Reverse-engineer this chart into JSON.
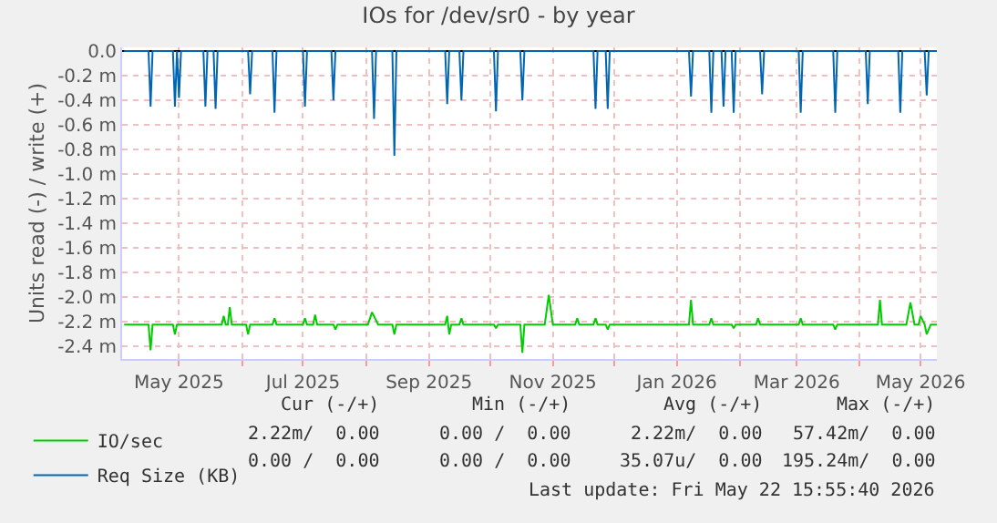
{
  "chart_data": {
    "type": "line",
    "title": "IOs for /dev/sr0 - by year",
    "ylabel": "Units read (-) / write (+)",
    "xlim": [
      "2025-04-17",
      "2026-05-23"
    ],
    "xticks": [
      {
        "value": "2025-05-15",
        "label": "May 2025"
      },
      {
        "value": "2025-06-15",
        "label": null
      },
      {
        "value": "2025-07-15",
        "label": "Jul 2025"
      },
      {
        "value": "2025-08-15",
        "label": null
      },
      {
        "value": "2025-09-15",
        "label": "Sep 2025"
      },
      {
        "value": "2025-10-15",
        "label": null
      },
      {
        "value": "2025-11-15",
        "label": "Nov 2025"
      },
      {
        "value": "2025-12-15",
        "label": null
      },
      {
        "value": "2026-01-15",
        "label": "Jan 2026"
      },
      {
        "value": "2026-02-15",
        "label": null
      },
      {
        "value": "2026-03-15",
        "label": "Mar 2026"
      },
      {
        "value": "2026-04-15",
        "label": null
      },
      {
        "value": "2026-05-15",
        "label": "May 2026"
      }
    ],
    "ylim": [
      -2.5,
      0.03
    ],
    "yticks": [
      {
        "value": 0,
        "label": "0.0"
      },
      {
        "value": -0.2,
        "label": "-0.2 m"
      },
      {
        "value": -0.4,
        "label": "-0.4 m"
      },
      {
        "value": -0.6,
        "label": "-0.6 m"
      },
      {
        "value": -0.8,
        "label": "-0.8 m"
      },
      {
        "value": -1.0,
        "label": "-1.0 m"
      },
      {
        "value": -1.2,
        "label": "-1.2 m"
      },
      {
        "value": -1.4,
        "label": "-1.4 m"
      },
      {
        "value": -1.6,
        "label": "-1.6 m"
      },
      {
        "value": -1.8,
        "label": "-1.8 m"
      },
      {
        "value": -2.0,
        "label": "-2.0 m"
      },
      {
        "value": -2.2,
        "label": "-2.2 m"
      },
      {
        "value": -2.4,
        "label": "-2.4 m"
      }
    ],
    "grid": true,
    "legend": "bottom",
    "marker": "none",
    "line_style": "solid",
    "series": [
      {
        "name": "IO/sec",
        "color": "#00cc00",
        "x": [
          "2025-04-18",
          "2025-04-30",
          "2025-05-01",
          "2025-05-02",
          "2025-05-12",
          "2025-05-13",
          "2025-05-14",
          "2025-06-05",
          "2025-06-06",
          "2025-06-07",
          "2025-06-08",
          "2025-06-09",
          "2025-06-10",
          "2025-06-17",
          "2025-06-18",
          "2025-06-19",
          "2025-06-30",
          "2025-07-01",
          "2025-07-02",
          "2025-07-15",
          "2025-07-16",
          "2025-07-17",
          "2025-07-20",
          "2025-07-21",
          "2025-07-22",
          "2025-07-30",
          "2025-07-31",
          "2025-08-01",
          "2025-08-16",
          "2025-08-18",
          "2025-08-21",
          "2025-08-28",
          "2025-08-29",
          "2025-08-30",
          "2025-09-23",
          "2025-09-24",
          "2025-09-25",
          "2025-09-26",
          "2025-09-30",
          "2025-10-01",
          "2025-10-02",
          "2025-10-17",
          "2025-10-18",
          "2025-10-19",
          "2025-10-30",
          "2025-10-31",
          "2025-11-01",
          "2025-11-11",
          "2025-11-13",
          "2025-11-15",
          "2025-11-26",
          "2025-11-27",
          "2025-11-28",
          "2025-12-05",
          "2025-12-06",
          "2025-12-07",
          "2025-12-11",
          "2025-12-12",
          "2025-12-13",
          "2026-01-21",
          "2026-01-22",
          "2026-01-23",
          "2026-01-31",
          "2026-02-01",
          "2026-02-02",
          "2026-02-11",
          "2026-02-12",
          "2026-02-13",
          "2026-02-23",
          "2026-02-24",
          "2026-02-25",
          "2026-03-16",
          "2026-03-17",
          "2026-03-18",
          "2026-04-02",
          "2026-04-03",
          "2026-04-04",
          "2026-04-24",
          "2026-04-25",
          "2026-04-26",
          "2026-05-08",
          "2026-05-10",
          "2026-05-12",
          "2026-05-14",
          "2026-05-15",
          "2026-05-17",
          "2026-05-18",
          "2026-05-20",
          "2026-05-23"
        ],
        "values": [
          -2.22,
          -2.22,
          -2.43,
          -2.22,
          -2.22,
          -2.3,
          -2.22,
          -2.22,
          -2.15,
          -2.22,
          -2.22,
          -2.08,
          -2.22,
          -2.22,
          -2.3,
          -2.22,
          -2.22,
          -2.17,
          -2.22,
          -2.22,
          -2.17,
          -2.22,
          -2.22,
          -2.14,
          -2.22,
          -2.22,
          -2.26,
          -2.22,
          -2.22,
          -2.12,
          -2.22,
          -2.22,
          -2.3,
          -2.22,
          -2.22,
          -2.15,
          -2.3,
          -2.22,
          -2.22,
          -2.17,
          -2.22,
          -2.22,
          -2.25,
          -2.22,
          -2.22,
          -2.45,
          -2.22,
          -2.22,
          -1.98,
          -2.22,
          -2.22,
          -2.17,
          -2.22,
          -2.22,
          -2.17,
          -2.22,
          -2.22,
          -2.26,
          -2.22,
          -2.22,
          -2.02,
          -2.22,
          -2.22,
          -2.17,
          -2.22,
          -2.22,
          -2.25,
          -2.22,
          -2.22,
          -2.17,
          -2.22,
          -2.22,
          -2.17,
          -2.22,
          -2.22,
          -2.26,
          -2.22,
          -2.22,
          -2.02,
          -2.22,
          -2.22,
          -2.04,
          -2.22,
          -2.22,
          -2.15,
          -2.22,
          -2.3,
          -2.22,
          -2.22
        ]
      },
      {
        "name": "Req Size (KB)",
        "color": "#0066b3",
        "x": [
          "2025-04-18",
          "2025-04-30",
          "2025-05-01",
          "2025-05-02",
          "2025-05-12",
          "2025-05-13",
          "2025-05-14",
          "2025-05-15",
          "2025-05-16",
          "2025-05-27",
          "2025-05-28",
          "2025-05-29",
          "2025-06-01",
          "2025-06-02",
          "2025-06-03",
          "2025-06-18",
          "2025-06-19",
          "2025-06-20",
          "2025-06-30",
          "2025-07-01",
          "2025-07-02",
          "2025-07-15",
          "2025-07-16",
          "2025-07-17",
          "2025-07-29",
          "2025-07-30",
          "2025-07-31",
          "2025-08-18",
          "2025-08-19",
          "2025-08-20",
          "2025-08-28",
          "2025-08-29",
          "2025-08-30",
          "2025-09-23",
          "2025-09-24",
          "2025-09-25",
          "2025-09-30",
          "2025-10-01",
          "2025-10-02",
          "2025-10-17",
          "2025-10-18",
          "2025-10-19",
          "2025-10-30",
          "2025-10-31",
          "2025-11-01",
          "2025-12-05",
          "2025-12-06",
          "2025-12-07",
          "2025-12-11",
          "2025-12-12",
          "2025-12-13",
          "2026-01-21",
          "2026-01-22",
          "2026-01-23",
          "2026-01-31",
          "2026-02-01",
          "2026-02-02",
          "2026-02-06",
          "2026-02-07",
          "2026-02-08",
          "2026-02-11",
          "2026-02-12",
          "2026-02-13",
          "2026-02-25",
          "2026-02-26",
          "2026-02-27",
          "2026-03-16",
          "2026-03-17",
          "2026-03-18",
          "2026-04-02",
          "2026-04-03",
          "2026-04-04",
          "2026-04-18",
          "2026-04-19",
          "2026-04-20",
          "2026-05-04",
          "2026-05-05",
          "2026-05-06",
          "2026-05-17",
          "2026-05-18",
          "2026-05-19",
          "2026-05-23"
        ],
        "values": [
          0,
          0,
          -0.45,
          0,
          0,
          -0.45,
          0,
          -0.38,
          0,
          0,
          -0.45,
          0,
          0,
          -0.47,
          0,
          0,
          -0.35,
          0,
          0,
          -0.5,
          0,
          0,
          -0.45,
          0,
          0,
          -0.4,
          0,
          0,
          -0.55,
          0,
          0,
          -0.85,
          0,
          0,
          -0.43,
          0,
          0,
          -0.4,
          0,
          0,
          -0.49,
          0,
          0,
          -0.4,
          0,
          0,
          -0.47,
          0,
          0,
          -0.47,
          0,
          0,
          -0.37,
          0,
          0,
          -0.5,
          0,
          0,
          -0.45,
          0,
          0,
          -0.5,
          0,
          0,
          -0.35,
          0,
          0,
          -0.5,
          0,
          0,
          -0.5,
          0,
          0,
          -0.43,
          0,
          0,
          -0.5,
          0,
          0,
          -0.36,
          0,
          0
        ]
      }
    ],
    "annotations": [
      "Cur (-/+)",
      "Min (-/+)",
      "Avg (-/+)",
      "Max (-/+)",
      "2.22m/  0.00",
      "0.00 /  0.00",
      "2.22m/  0.00",
      "57.42m/  0.00",
      "0.00 /  0.00",
      "0.00 /  0.00",
      "35.07u/  0.00",
      "195.24m/  0.00",
      "Last update: Fri May 22 15:55:40 2026"
    ]
  }
}
